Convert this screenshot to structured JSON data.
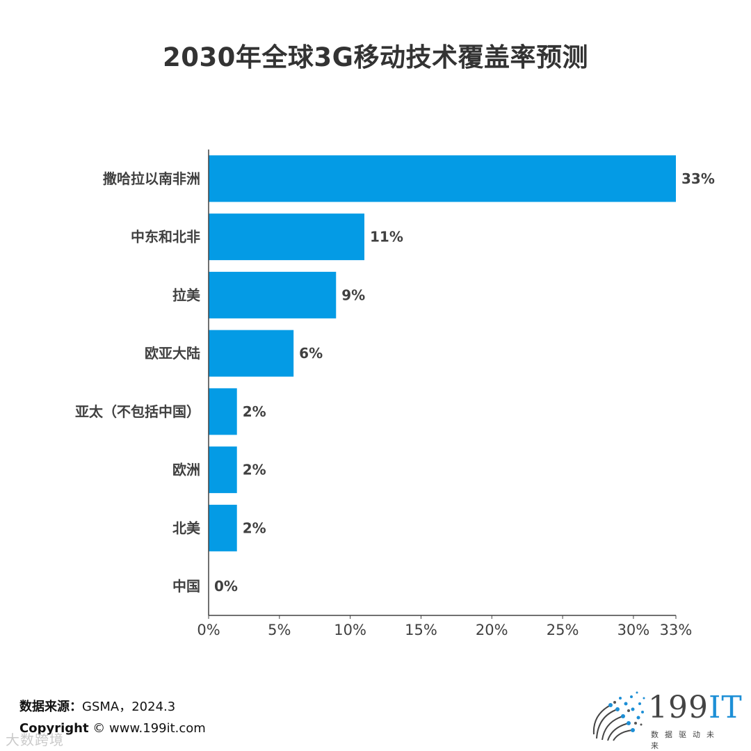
{
  "page_title": "2030年全球3G移动技术覆盖率预测",
  "chart_data": {
    "type": "bar",
    "orientation": "horizontal",
    "title": "2030年全球3G移动技术覆盖率预测",
    "categories": [
      "撒哈拉以南非洲",
      "中东和北非",
      "拉美",
      "欧亚大陆",
      "亚太（不包括中国）",
      "欧洲",
      "北美",
      "中国"
    ],
    "values": [
      33,
      11,
      9,
      6,
      2,
      2,
      2,
      0
    ],
    "value_labels": [
      "33%",
      "11%",
      "9%",
      "6%",
      "2%",
      "2%",
      "2%",
      "0%"
    ],
    "xlim": [
      0,
      33
    ],
    "ticks": [
      0,
      5,
      10,
      15,
      20,
      25,
      30,
      33
    ],
    "tick_labels": [
      "0%",
      "5%",
      "10%",
      "15%",
      "20%",
      "25%",
      "30%",
      "33%"
    ],
    "bar_color": "#049be5",
    "xlabel": "",
    "ylabel": ""
  },
  "footer": {
    "source_label": "数据来源：",
    "source_text": "GSMA，2024.3",
    "copyright_label": "Copyright",
    "copyright_text": "© www.199it.com",
    "watermark": "大数跨境"
  },
  "logo": {
    "main_text": "199",
    "accent_text": "IT",
    "tagline": "数据驱动未来",
    "accent_color": "#1d8fd6"
  }
}
